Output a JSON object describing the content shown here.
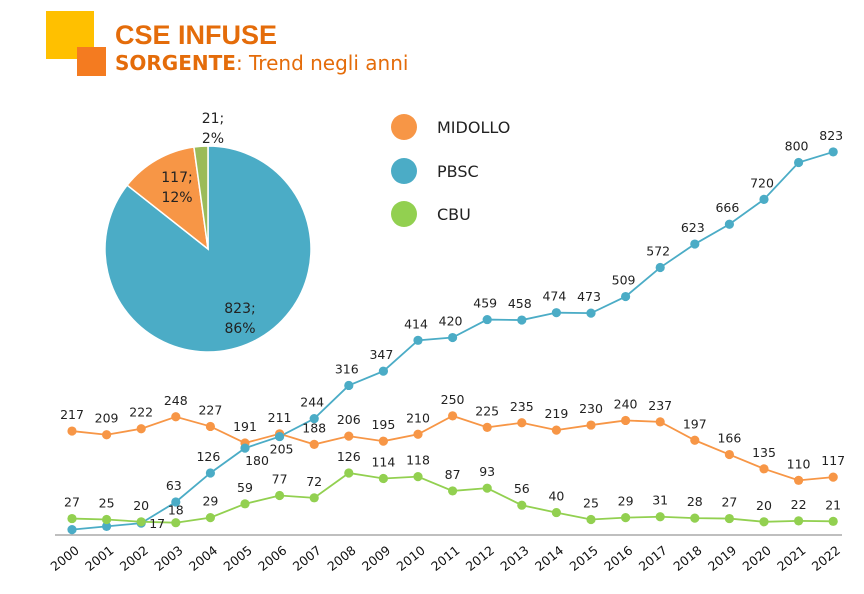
{
  "header": {
    "title": "CSE INFUSE",
    "subtitle_bold": "SORGENTE",
    "subtitle_rest": ": Trend negli anni"
  },
  "chart_data": [
    {
      "type": "line",
      "categories": [
        "2000",
        "2001",
        "2002",
        "2003",
        "2004",
        "2005",
        "2006",
        "2007",
        "2008",
        "2009",
        "2010",
        "2011",
        "2012",
        "2013",
        "2014",
        "2015",
        "2016",
        "2017",
        "2018",
        "2019",
        "2020",
        "2021",
        "2022"
      ],
      "series": [
        {
          "name": "MIDOLLO",
          "color": "#f79646",
          "values": [
            217,
            209,
            222,
            248,
            227,
            191,
            211,
            188,
            206,
            195,
            210,
            250,
            225,
            235,
            219,
            230,
            240,
            237,
            197,
            166,
            135,
            110,
            117
          ]
        },
        {
          "name": "PBSC",
          "color": "#4bacc6",
          "values": [
            3,
            10,
            17,
            63,
            126,
            180,
            205,
            244,
            316,
            347,
            414,
            420,
            459,
            458,
            474,
            473,
            509,
            572,
            623,
            666,
            720,
            800,
            823
          ]
        },
        {
          "name": "CBU",
          "color": "#92d050",
          "values": [
            27,
            25,
            20,
            18,
            29,
            59,
            77,
            72,
            126,
            114,
            118,
            87,
            93,
            56,
            40,
            25,
            29,
            31,
            28,
            27,
            20,
            22,
            21
          ]
        }
      ],
      "pbsc_labels": [
        "",
        "",
        "17",
        "63",
        "126",
        "180",
        "205",
        "244",
        "316",
        "347",
        "414",
        "420",
        "459",
        "458",
        "474",
        "473",
        "509",
        "572",
        "623",
        "666",
        "720",
        "800",
        "823"
      ],
      "legend_placement": "top-center",
      "grid": false
    },
    {
      "type": "pie",
      "slices": [
        {
          "name": "PBSC",
          "value": 823,
          "percent": "86%",
          "label_line1": "823;",
          "label_line2": "86%",
          "color": "#4bacc6"
        },
        {
          "name": "MIDOLLO",
          "value": 117,
          "percent": "12%",
          "label_line1": "117;",
          "label_line2": "12%",
          "color": "#f79646"
        },
        {
          "name": "CBU",
          "value": 21,
          "percent": "2%",
          "label_line1": "21;",
          "label_line2": "2%",
          "color": "#9bbb59"
        }
      ]
    }
  ]
}
